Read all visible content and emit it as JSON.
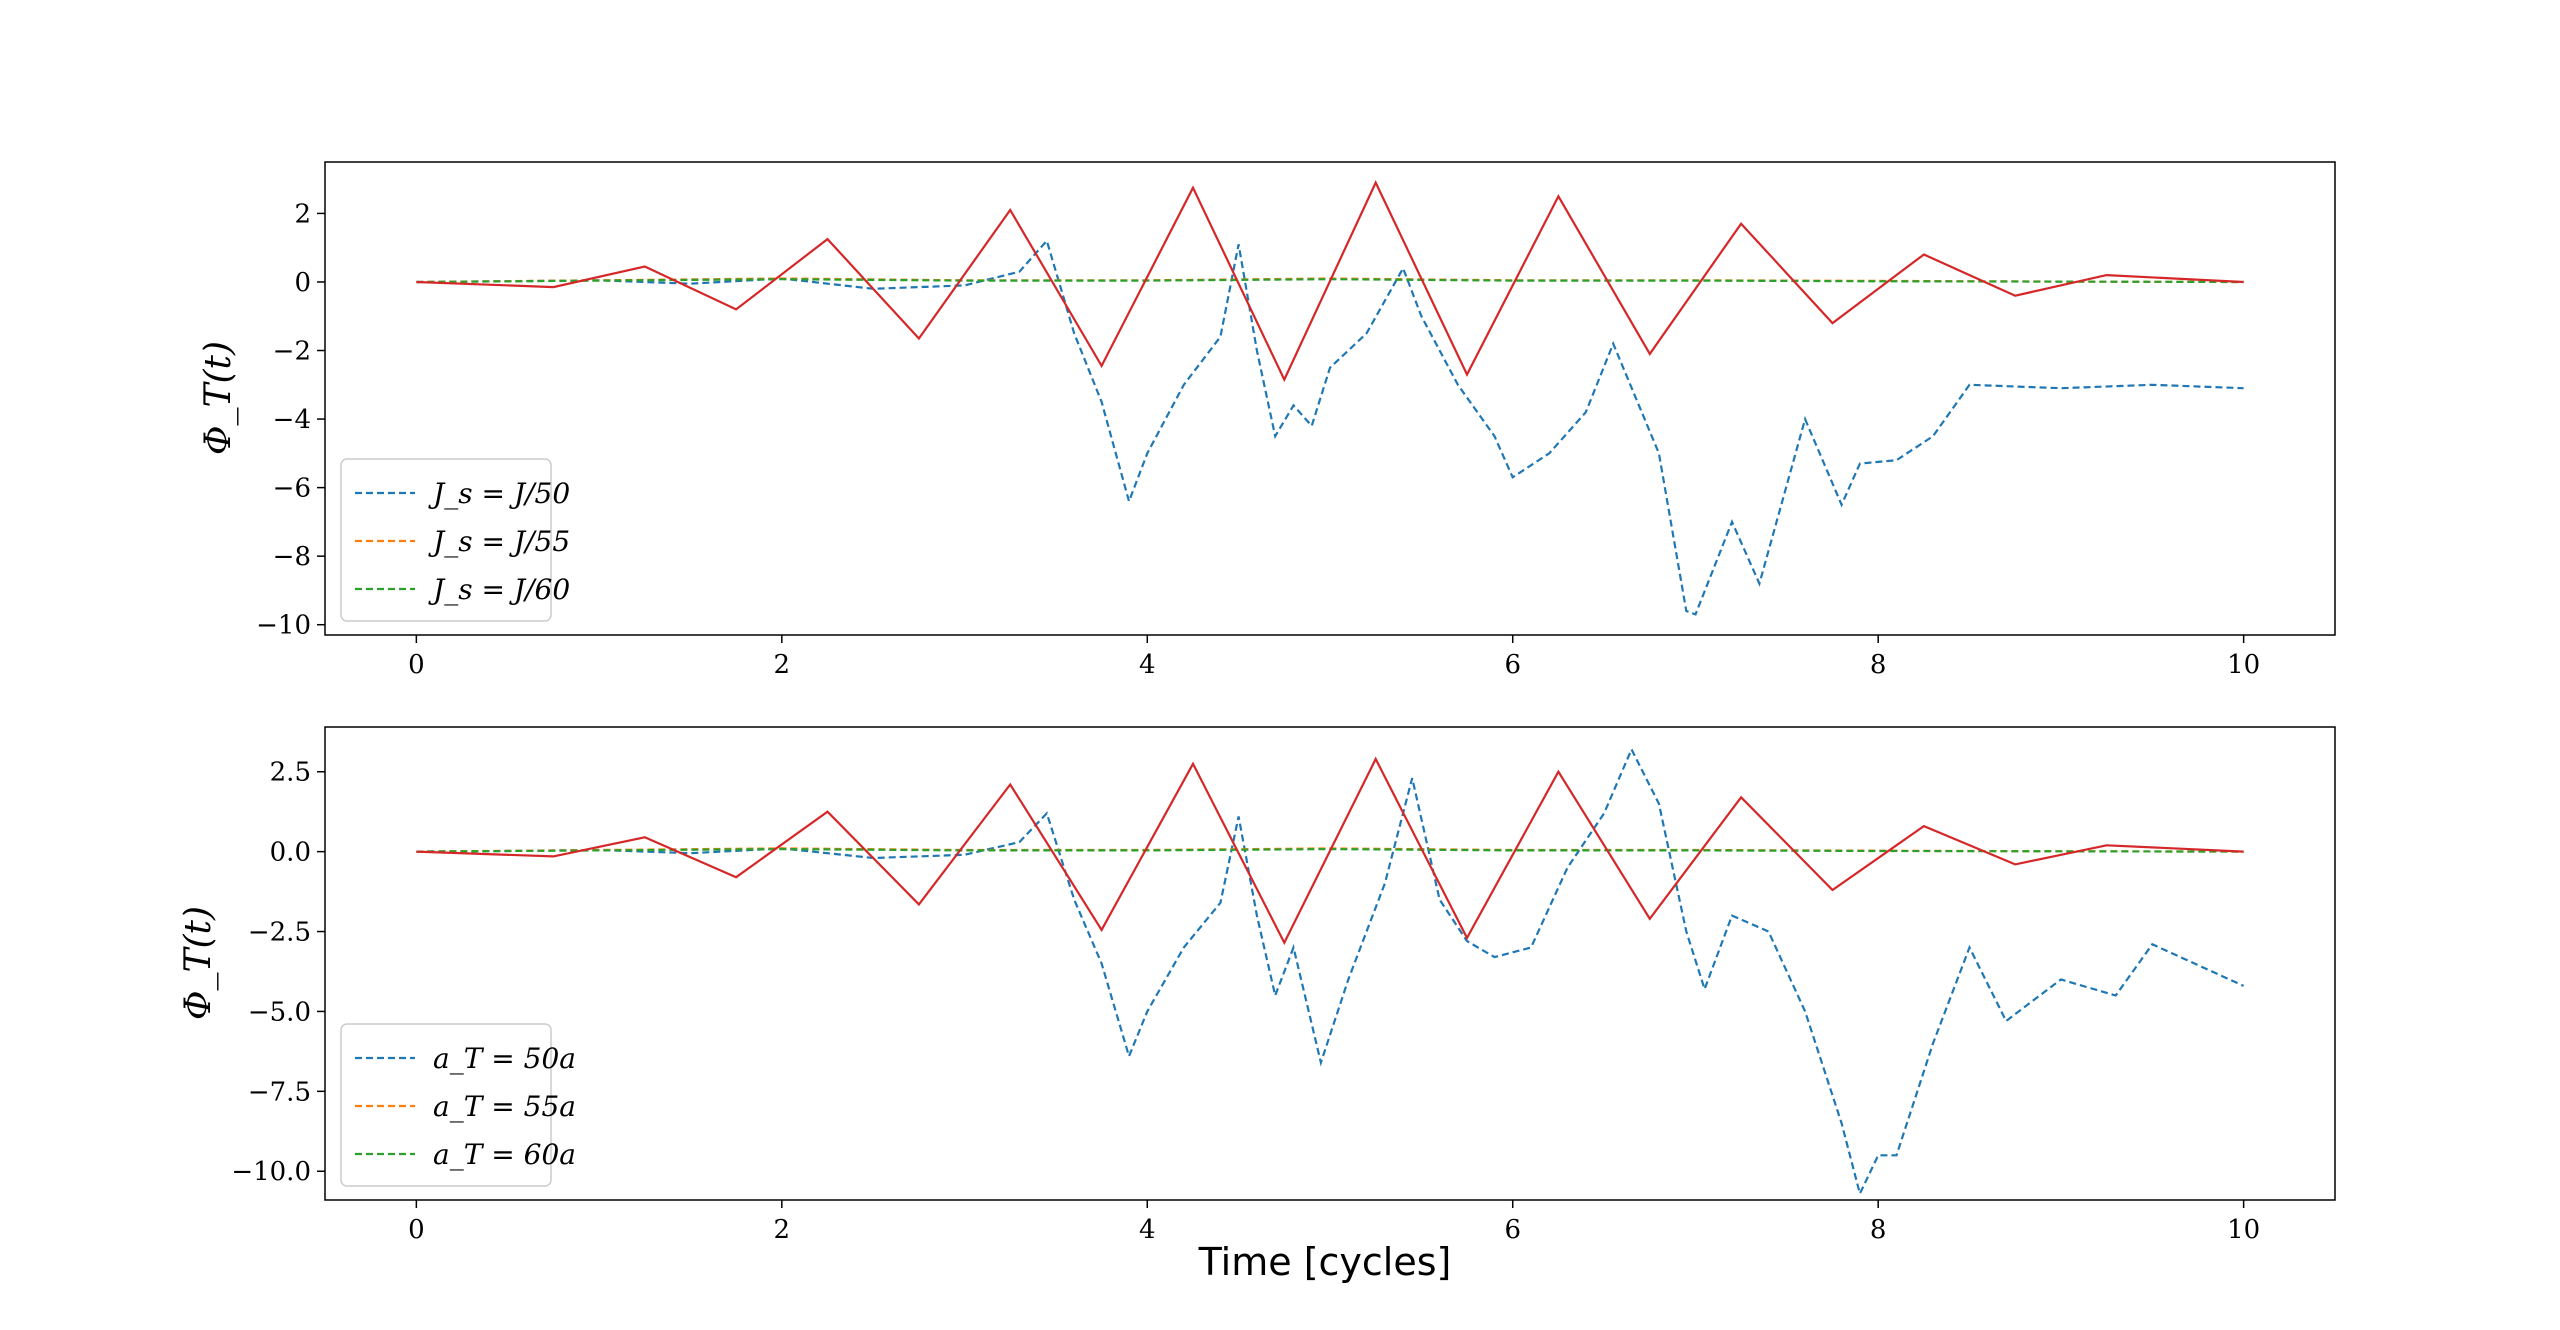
{
  "chart_data": [
    {
      "type": "line",
      "ylabel": "Φ_T(t)",
      "xlabel": "",
      "xlim": [
        -0.5,
        10.5
      ],
      "ylim": [
        -10.3,
        3.5
      ],
      "xticks": [
        0,
        2,
        4,
        6,
        8,
        10
      ],
      "xtick_labels": [
        "0",
        "2",
        "4",
        "6",
        "8",
        "10"
      ],
      "yticks": [
        2,
        0,
        -2,
        -4,
        -6,
        -8,
        -10
      ],
      "ytick_labels": [
        "2",
        "0",
        "−2",
        "−4",
        "−6",
        "−8",
        "−10"
      ],
      "legend_position": "lower-left",
      "legend": [
        {
          "label": "J_s = J/50",
          "color": "#1f77b4"
        },
        {
          "label": "J_s = J/55",
          "color": "#ff7f0e"
        },
        {
          "label": "J_s = J/60",
          "color": "#2ca02c"
        }
      ],
      "series": [
        {
          "name": "J_s = J/50",
          "color": "#1f77b4",
          "style": "dashed",
          "x": [
            0,
            0.5,
            1,
            1.5,
            2,
            2.5,
            3,
            3.3,
            3.45,
            3.6,
            3.75,
            3.9,
            4.0,
            4.2,
            4.4,
            4.5,
            4.6,
            4.7,
            4.8,
            4.9,
            5.0,
            5.2,
            5.4,
            5.5,
            5.7,
            5.9,
            6.0,
            6.2,
            6.4,
            6.55,
            6.8,
            6.95,
            7.0,
            7.2,
            7.35,
            7.6,
            7.8,
            7.9,
            8.1,
            8.3,
            8.5,
            9.0,
            9.5,
            10.0
          ],
          "y": [
            0,
            0.02,
            0.05,
            -0.05,
            0.1,
            -0.2,
            -0.1,
            0.3,
            1.2,
            -1.5,
            -3.5,
            -6.4,
            -5.0,
            -3.0,
            -1.6,
            1.1,
            -2.0,
            -4.5,
            -3.6,
            -4.2,
            -2.5,
            -1.5,
            0.4,
            -1.0,
            -3.0,
            -4.5,
            -5.7,
            -5.0,
            -3.8,
            -1.8,
            -5.0,
            -9.6,
            -9.7,
            -7.0,
            -8.8,
            -4.0,
            -6.5,
            -5.3,
            -5.2,
            -4.5,
            -3.0,
            -3.1,
            -3.0,
            -3.1
          ]
        },
        {
          "name": "J_s = J/55",
          "color": "#ff7f0e",
          "style": "dashed",
          "x": [
            0,
            1,
            2,
            3,
            4,
            5,
            6,
            7,
            8,
            9,
            10
          ],
          "y": [
            0,
            0.05,
            0.1,
            0.05,
            0.05,
            0.1,
            0.05,
            0.05,
            0.03,
            0.01,
            0
          ]
        },
        {
          "name": "J_s = J/60",
          "color": "#2ca02c",
          "style": "dashed",
          "x": [
            0,
            1,
            2,
            3,
            4,
            5,
            6,
            7,
            8,
            9,
            10
          ],
          "y": [
            0,
            0.04,
            0.08,
            0.04,
            0.04,
            0.08,
            0.04,
            0.04,
            0.02,
            0.01,
            0
          ]
        },
        {
          "name": "",
          "color": "#d62728",
          "style": "solid",
          "x": [
            0,
            0.75,
            1.25,
            1.75,
            2.25,
            2.75,
            3.25,
            3.75,
            4.25,
            4.75,
            5.25,
            5.75,
            6.25,
            6.75,
            7.25,
            7.75,
            8.25,
            8.75,
            9.25,
            10
          ],
          "y": [
            0,
            -0.15,
            0.45,
            -0.8,
            1.25,
            -1.65,
            2.1,
            -2.45,
            2.75,
            -2.85,
            2.9,
            -2.7,
            2.5,
            -2.1,
            1.7,
            -1.2,
            0.8,
            -0.4,
            0.2,
            0
          ]
        }
      ]
    },
    {
      "type": "line",
      "ylabel": "Φ_T(t)",
      "xlabel": "Time [cycles]",
      "xlim": [
        -0.5,
        10.5
      ],
      "ylim": [
        -10.9,
        3.9
      ],
      "xticks": [
        0,
        2,
        4,
        6,
        8,
        10
      ],
      "xtick_labels": [
        "0",
        "2",
        "4",
        "6",
        "8",
        "10"
      ],
      "yticks": [
        2.5,
        0,
        -2.5,
        -5,
        -7.5,
        -10
      ],
      "ytick_labels": [
        "2.5",
        "0.0",
        "−2.5",
        "−5.0",
        "−7.5",
        "−10.0"
      ],
      "legend_position": "lower-left",
      "legend": [
        {
          "label": "a_T = 50a",
          "color": "#1f77b4"
        },
        {
          "label": "a_T = 55a",
          "color": "#ff7f0e"
        },
        {
          "label": "a_T = 60a",
          "color": "#2ca02c"
        }
      ],
      "series": [
        {
          "name": "a_T = 50a",
          "color": "#1f77b4",
          "style": "dashed",
          "x": [
            0,
            0.5,
            1,
            1.5,
            2,
            2.5,
            3,
            3.3,
            3.45,
            3.6,
            3.75,
            3.9,
            4.0,
            4.2,
            4.4,
            4.5,
            4.6,
            4.7,
            4.8,
            4.95,
            5.1,
            5.3,
            5.45,
            5.6,
            5.75,
            5.9,
            6.1,
            6.3,
            6.5,
            6.65,
            6.8,
            6.95,
            7.05,
            7.2,
            7.4,
            7.6,
            7.8,
            7.9,
            8.0,
            8.1,
            8.3,
            8.5,
            8.7,
            9.0,
            9.3,
            9.5,
            10.0
          ],
          "y": [
            0,
            0.02,
            0.05,
            -0.05,
            0.1,
            -0.2,
            -0.1,
            0.3,
            1.2,
            -1.5,
            -3.5,
            -6.4,
            -5.0,
            -3.0,
            -1.6,
            1.1,
            -2.0,
            -4.5,
            -3.0,
            -6.6,
            -4.0,
            -1.0,
            2.3,
            -1.5,
            -2.8,
            -3.3,
            -3.0,
            -0.5,
            1.2,
            3.2,
            1.5,
            -2.5,
            -4.3,
            -2.0,
            -2.5,
            -5.0,
            -8.5,
            -10.7,
            -9.5,
            -9.5,
            -6.0,
            -3.0,
            -5.3,
            -4.0,
            -4.5,
            -2.9,
            -4.2
          ]
        },
        {
          "name": "a_T = 55a",
          "color": "#ff7f0e",
          "style": "dashed",
          "x": [
            0,
            1,
            2,
            3,
            4,
            5,
            6,
            7,
            8,
            9,
            10
          ],
          "y": [
            0,
            0.05,
            0.1,
            0.05,
            0.05,
            0.1,
            0.05,
            0.05,
            0.03,
            0.01,
            0
          ]
        },
        {
          "name": "a_T = 60a",
          "color": "#2ca02c",
          "style": "dashed",
          "x": [
            0,
            1,
            2,
            3,
            4,
            5,
            6,
            7,
            8,
            9,
            10
          ],
          "y": [
            0,
            0.04,
            0.08,
            0.04,
            0.04,
            0.08,
            0.04,
            0.04,
            0.02,
            0.01,
            0
          ]
        },
        {
          "name": "",
          "color": "#d62728",
          "style": "solid",
          "x": [
            0,
            0.75,
            1.25,
            1.75,
            2.25,
            2.75,
            3.25,
            3.75,
            4.25,
            4.75,
            5.25,
            5.75,
            6.25,
            6.75,
            7.25,
            7.75,
            8.25,
            8.75,
            9.25,
            10
          ],
          "y": [
            0,
            -0.15,
            0.45,
            -0.8,
            1.25,
            -1.65,
            2.1,
            -2.45,
            2.75,
            -2.85,
            2.9,
            -2.7,
            2.5,
            -2.1,
            1.7,
            -1.2,
            0.8,
            -0.4,
            0.2,
            0
          ]
        }
      ]
    }
  ]
}
